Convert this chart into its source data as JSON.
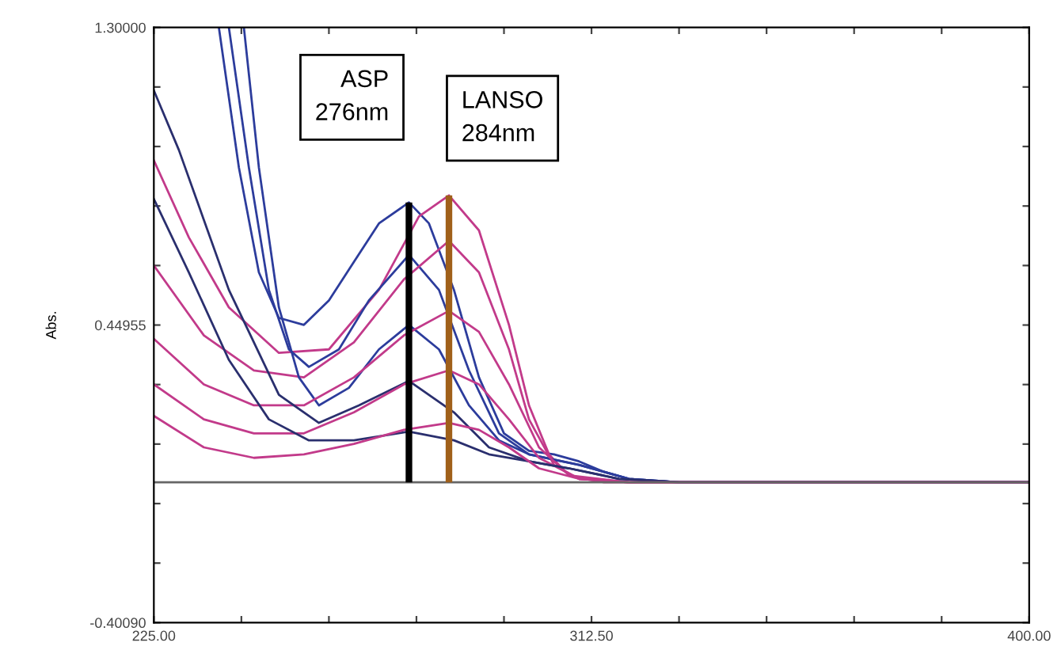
{
  "chart_data": {
    "type": "line",
    "ylabel": "Abs.",
    "xlim": [
      225,
      400
    ],
    "ylim": [
      -0.4009,
      1.3
    ],
    "xticks": [
      {
        "value": 225,
        "label": "225.00"
      },
      {
        "value": 242.5,
        "label": null
      },
      {
        "value": 260,
        "label": null
      },
      {
        "value": 277.5,
        "label": null
      },
      {
        "value": 295,
        "label": null
      },
      {
        "value": 312.5,
        "label": "312.50"
      },
      {
        "value": 330,
        "label": null
      },
      {
        "value": 347.5,
        "label": null
      },
      {
        "value": 365,
        "label": null
      },
      {
        "value": 382.5,
        "label": null
      },
      {
        "value": 400,
        "label": "400.00"
      }
    ],
    "yticks": [
      {
        "value": -0.4009,
        "label": "-0.40090"
      },
      {
        "value": -0.23081,
        "label": null
      },
      {
        "value": -0.06072,
        "label": null
      },
      {
        "value": 0.10937,
        "label": null
      },
      {
        "value": 0.27946,
        "label": null
      },
      {
        "value": 0.44955,
        "label": "0.44955"
      },
      {
        "value": 0.61964,
        "label": null
      },
      {
        "value": 0.78973,
        "label": null
      },
      {
        "value": 0.95982,
        "label": null
      },
      {
        "value": 1.12991,
        "label": null
      },
      {
        "value": 1.3,
        "label": "1.30000"
      }
    ],
    "grid": false,
    "legend": false,
    "marker": "none",
    "line_style": "solid",
    "series": [
      {
        "color": "#2c3c9c",
        "x": [
          238,
          242,
          246,
          250,
          255,
          260,
          265,
          270,
          276,
          280,
          285,
          290,
          295,
          300,
          305,
          310,
          315,
          320,
          330,
          400
        ],
        "values": [
          1.3,
          0.9,
          0.6,
          0.47,
          0.45,
          0.52,
          0.63,
          0.74,
          0.8,
          0.74,
          0.55,
          0.3,
          0.14,
          0.09,
          0.08,
          0.06,
          0.03,
          0.01,
          0,
          0
        ]
      },
      {
        "color": "#c23a8a",
        "x": [
          225,
          232,
          240,
          250,
          260,
          270,
          278,
          284,
          290,
          296,
          300,
          304,
          308,
          315,
          400
        ],
        "values": [
          0.92,
          0.7,
          0.5,
          0.37,
          0.38,
          0.55,
          0.76,
          0.82,
          0.72,
          0.45,
          0.22,
          0.08,
          0.02,
          0,
          0
        ]
      },
      {
        "color": "#2c3c9c",
        "x": [
          240,
          244,
          248,
          252,
          256,
          262,
          268,
          276,
          282,
          288,
          294,
          300,
          310,
          320,
          330,
          400
        ],
        "values": [
          1.3,
          0.9,
          0.55,
          0.38,
          0.33,
          0.38,
          0.52,
          0.65,
          0.55,
          0.32,
          0.14,
          0.08,
          0.05,
          0.01,
          0,
          0
        ]
      },
      {
        "color": "#c23a8a",
        "x": [
          225,
          235,
          245,
          255,
          265,
          275,
          284,
          290,
          296,
          300,
          305,
          310,
          320,
          400
        ],
        "values": [
          0.62,
          0.42,
          0.32,
          0.3,
          0.4,
          0.58,
          0.69,
          0.6,
          0.38,
          0.18,
          0.05,
          0.01,
          0,
          0
        ]
      },
      {
        "color": "#2c3c9c",
        "x": [
          243,
          246,
          250,
          254,
          258,
          264,
          270,
          276,
          282,
          288,
          294,
          300,
          310,
          320,
          330,
          400
        ],
        "values": [
          1.3,
          0.9,
          0.5,
          0.3,
          0.22,
          0.27,
          0.38,
          0.45,
          0.38,
          0.22,
          0.12,
          0.08,
          0.05,
          0.01,
          0,
          0
        ]
      },
      {
        "color": "#c23a8a",
        "x": [
          225,
          235,
          245,
          255,
          265,
          275,
          284,
          290,
          296,
          302,
          308,
          320,
          400
        ],
        "values": [
          0.41,
          0.28,
          0.22,
          0.22,
          0.3,
          0.42,
          0.49,
          0.43,
          0.28,
          0.1,
          0.02,
          0,
          0
        ]
      },
      {
        "color": "#2a2f6e",
        "x": [
          225,
          230,
          240,
          250,
          258,
          266,
          276,
          285,
          292,
          300,
          308,
          318,
          330,
          400
        ],
        "values": [
          1.12,
          0.95,
          0.55,
          0.25,
          0.17,
          0.22,
          0.29,
          0.2,
          0.1,
          0.06,
          0.04,
          0.01,
          0,
          0
        ]
      },
      {
        "color": "#c23a8a",
        "x": [
          225,
          235,
          245,
          255,
          265,
          275,
          284,
          290,
          296,
          302,
          310,
          320,
          400
        ],
        "values": [
          0.28,
          0.18,
          0.14,
          0.14,
          0.2,
          0.28,
          0.32,
          0.28,
          0.18,
          0.07,
          0.01,
          0,
          0
        ]
      },
      {
        "color": "#2a2f6e",
        "x": [
          225,
          232,
          240,
          248,
          256,
          265,
          276,
          285,
          292,
          300,
          308,
          318,
          330,
          400
        ],
        "values": [
          0.81,
          0.6,
          0.35,
          0.18,
          0.12,
          0.12,
          0.145,
          0.12,
          0.08,
          0.06,
          0.04,
          0.01,
          0,
          0
        ]
      },
      {
        "color": "#c23a8a",
        "x": [
          225,
          235,
          245,
          255,
          265,
          275,
          284,
          290,
          296,
          302,
          310,
          320,
          400
        ],
        "values": [
          0.19,
          0.1,
          0.07,
          0.08,
          0.11,
          0.15,
          0.17,
          0.15,
          0.1,
          0.04,
          0.01,
          0,
          0
        ]
      }
    ],
    "ref_lines": [
      {
        "axis": "y",
        "value": 0,
        "color": "#666666"
      },
      {
        "axis": "x",
        "value": 276,
        "label": "ASP\n276nm",
        "color": "#000000"
      },
      {
        "axis": "x",
        "value": 284,
        "label": "LANSO\n284nm",
        "color": "#a0601a"
      }
    ]
  }
}
